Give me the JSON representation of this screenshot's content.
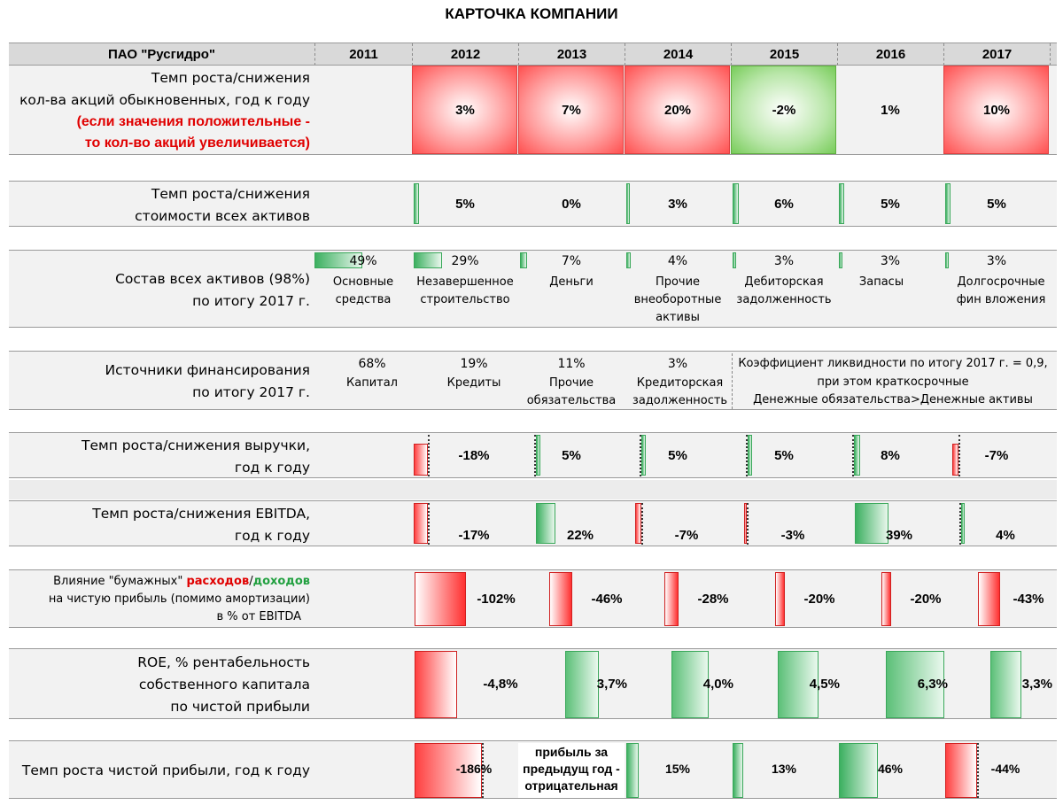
{
  "title": "КАРТОЧКА КОМПАНИИ",
  "header": {
    "company": "ПАО \"Русгидро\"",
    "years": [
      "2011",
      "2012",
      "2013",
      "2014",
      "2015",
      "2016",
      "2017"
    ]
  },
  "shares": {
    "label1": "Темп роста/снижения",
    "label2": "кол-ва акций обыкновенных,  год к году",
    "note1": "(если значения положительные -",
    "note2": "то кол-во акций увеличивается)",
    "values": [
      "3%",
      "7%",
      "20%",
      "-2%",
      "1%",
      "10%"
    ]
  },
  "assets_growth": {
    "label1": "Темп роста/снижения",
    "label2": "стоимости всех активов",
    "values": [
      "5%",
      "0%",
      "3%",
      "6%",
      "5%",
      "5%"
    ]
  },
  "assets_structure": {
    "label1": "Состав всех активов (98%)",
    "label2": "по итогу 2017 г.",
    "items": [
      {
        "pct": "49%",
        "name1": "Основные",
        "name2": "средства",
        "name3": ""
      },
      {
        "pct": "29%",
        "name1": "Незавершенное",
        "name2": "строительство",
        "name3": ""
      },
      {
        "pct": "7%",
        "name1": "Деньги",
        "name2": "",
        "name3": ""
      },
      {
        "pct": "4%",
        "name1": "Прочие",
        "name2": "внеоборотные",
        "name3": "активы"
      },
      {
        "pct": "3%",
        "name1": "Дебиторская",
        "name2": "задолженность",
        "name3": ""
      },
      {
        "pct": "3%",
        "name1": "Запасы",
        "name2": "",
        "name3": ""
      },
      {
        "pct": "3%",
        "name1": "Долгосрочные",
        "name2": "фин вложения",
        "name3": ""
      }
    ]
  },
  "financing": {
    "label1": "Источники финансирования",
    "label2": "по итогу 2017 г.",
    "items": [
      {
        "pct": "68%",
        "name1": "Капитал",
        "name2": ""
      },
      {
        "pct": "19%",
        "name1": "Кредиты",
        "name2": ""
      },
      {
        "pct": "11%",
        "name1": "Прочие",
        "name2": "обязательства"
      },
      {
        "pct": "3%",
        "name1": "Кредиторская",
        "name2": "задолженность"
      }
    ],
    "liquidity1": "Коэффициент ликвидности по итогу 2017 г. = 0,9,",
    "liquidity2": "при этом краткосрочные",
    "liquidity3": "Денежные обязательства>Денежные активы"
  },
  "revenue": {
    "label1": "Темп роста/снижения выручки,",
    "label2": "год к году",
    "values": [
      "-18%",
      "5%",
      "5%",
      "5%",
      "8%",
      "-7%"
    ]
  },
  "ebitda": {
    "label1": "Темп роста/снижения EBITDA,",
    "label2": "год к году",
    "values": [
      "-17%",
      "22%",
      "-7%",
      "-3%",
      "39%",
      "4%"
    ]
  },
  "paper": {
    "label_prefix": "Влияние \"бумажных\" ",
    "label_red": "расходов",
    "label_slash": "/",
    "label_green": "доходов",
    "label2": "на чистую прибыль (помимо амортизации)",
    "label3": "в % от EBITDA",
    "values": [
      "-102%",
      "-46%",
      "-28%",
      "-20%",
      "-20%",
      "-43%"
    ]
  },
  "roe": {
    "label1": "ROE, % рентабельность",
    "label2": "собственного капитала",
    "label3": "по чистой прибыли",
    "values": [
      "-4,8%",
      "3,7%",
      "4,0%",
      "4,5%",
      "6,3%",
      "3,3%"
    ]
  },
  "net_profit": {
    "label": "Темп роста чистой прибыли, год к году",
    "values": [
      "-186%",
      "",
      "15%",
      "13%",
      "46%",
      "-44%"
    ],
    "note1": "прибыль за",
    "note2": "предыдущ год -",
    "note3": "отрицательная"
  }
}
